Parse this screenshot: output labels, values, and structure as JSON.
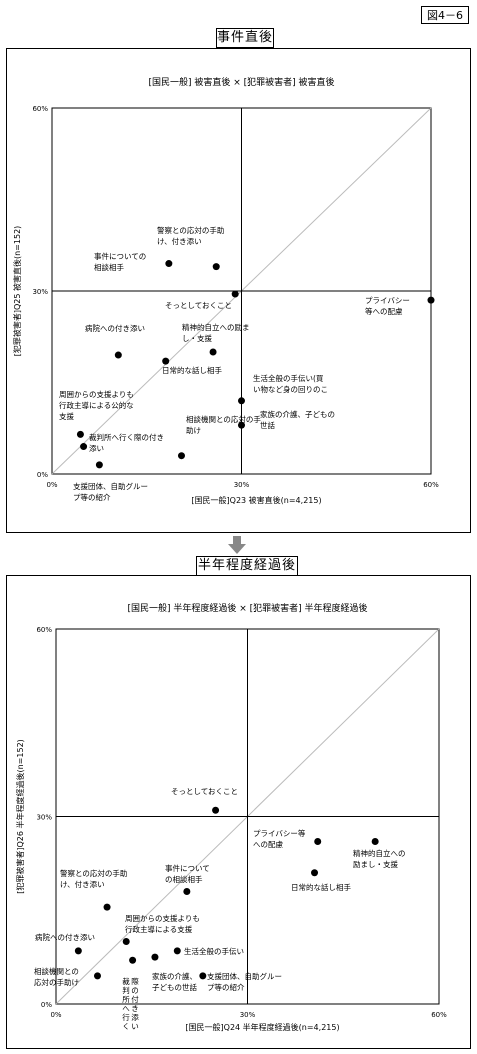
{
  "figure_label": "図4－6",
  "panels": [
    {
      "section_title": "事件直後",
      "chart_title": "[国民一般] 被害直後 × [犯罪被害者] 被害直後",
      "xlabel": "[国民一般]Q23 被害直後(n=4,215)",
      "ylabel": "[犯罪被害者]Q25 被害直後(n=152)",
      "x_ticks": [
        "0%",
        "30%",
        "60%"
      ],
      "y_ticks": [
        "0%",
        "30%",
        "60%"
      ]
    },
    {
      "section_title": "半年程度経過後",
      "chart_title": "[国民一般] 半年程度経過後 × [犯罪被害者] 半年程度経過後",
      "xlabel": "[国民一般]Q24 半年程度経過後(n=4,215)",
      "ylabel": "[犯罪被害者]Q26 半年程度経過後(n=152)",
      "x_ticks": [
        "0%",
        "30%",
        "60%"
      ],
      "y_ticks": [
        "0%",
        "30%",
        "60%"
      ]
    }
  ],
  "chart_data": [
    {
      "type": "scatter",
      "title": "[国民一般] 被害直後 × [犯罪被害者] 被害直後",
      "xlabel": "[国民一般]Q23 被害直後(n=4,215)",
      "ylabel": "[犯罪被害者]Q25 被害直後(n=152)",
      "xlim": [
        0,
        60
      ],
      "ylim": [
        0,
        60
      ],
      "unit": "%",
      "reference_lines": {
        "x": 30,
        "y": 30,
        "diagonal": true
      },
      "points": [
        {
          "label": "警察との応対の手助け、付き添い",
          "x": 26,
          "y": 34
        },
        {
          "label": "事件についての相談相手",
          "x": 18.5,
          "y": 34.5
        },
        {
          "label": "そっとしておくこと",
          "x": 29,
          "y": 29.5
        },
        {
          "label": "プライバシー等への配慮",
          "x": 60,
          "y": 28.5
        },
        {
          "label": "病院への付き添い",
          "x": 10.5,
          "y": 19.5
        },
        {
          "label": "精神的自立への励まし・支援",
          "x": 25.5,
          "y": 20
        },
        {
          "label": "日常的な話し相手",
          "x": 18,
          "y": 18.5
        },
        {
          "label": "生活全般の手伝い(買い物など身の回りのこと)",
          "x": 30,
          "y": 12
        },
        {
          "label": "周囲からの支援よりも行政主導による公的な支援",
          "x": 4.5,
          "y": 6.5
        },
        {
          "label": "家族の介護、子どもの世話",
          "x": 30,
          "y": 8
        },
        {
          "label": "裁判所へ行く際の付き添い",
          "x": 5,
          "y": 4.5
        },
        {
          "label": "相談機関との応対の手助け",
          "x": 20.5,
          "y": 3
        },
        {
          "label": "支援団体、自助グループ等の紹介",
          "x": 7.5,
          "y": 1.5
        }
      ]
    },
    {
      "type": "scatter",
      "title": "[国民一般] 半年程度経過後 × [犯罪被害者] 半年程度経過後",
      "xlabel": "[国民一般]Q24 半年程度経過後(n=4,215)",
      "ylabel": "[犯罪被害者]Q26 半年程度経過後(n=152)",
      "xlim": [
        0,
        60
      ],
      "ylim": [
        0,
        60
      ],
      "unit": "%",
      "reference_lines": {
        "x": 30,
        "y": 30,
        "diagonal": true
      },
      "points": [
        {
          "label": "そっとしておくこと",
          "x": 25,
          "y": 31
        },
        {
          "label": "プライバシー等への配慮",
          "x": 41,
          "y": 26
        },
        {
          "label": "精神的自立への励まし・支援",
          "x": 50,
          "y": 26
        },
        {
          "label": "日常的な話し相手",
          "x": 40.5,
          "y": 21
        },
        {
          "label": "事件についての相談相手",
          "x": 20.5,
          "y": 18
        },
        {
          "label": "警察との応対の手助け、付き添い",
          "x": 8,
          "y": 15.5
        },
        {
          "label": "周囲からの支援よりも行政主導による公的な支援",
          "x": 11,
          "y": 10
        },
        {
          "label": "病院への付き添い",
          "x": 3.5,
          "y": 8.5
        },
        {
          "label": "生活全般の手伝い",
          "x": 19,
          "y": 8.5
        },
        {
          "label": "家族の介護、子どもの世話",
          "x": 15.5,
          "y": 7.5
        },
        {
          "label": "裁判所へ行く際の付き添い",
          "x": 12,
          "y": 7
        },
        {
          "label": "相談機関との応対の手助け",
          "x": 6.5,
          "y": 4.5
        },
        {
          "label": "支援団体、自助グループ等の紹介",
          "x": 23,
          "y": 4.5
        }
      ]
    }
  ],
  "point_labels": [
    [
      {
        "lines": [
          "警察との応対の手助",
          "け、付き添い"
        ]
      },
      {
        "lines": [
          "事件についての",
          "相談相手"
        ]
      },
      {
        "lines": [
          "そっとしておくこと"
        ]
      },
      {
        "lines": [
          "プライバシー",
          "等への配慮"
        ]
      },
      {
        "lines": [
          "病院への付き添い"
        ]
      },
      {
        "lines": [
          "精神的自立への励ま",
          "し・支援"
        ]
      },
      {
        "lines": [
          "日常的な話し相手"
        ]
      },
      {
        "lines": [
          "生活全般の手伝い(買",
          "い物など身の回りのこ"
        ]
      },
      {
        "lines": [
          "周囲からの支援よりも",
          "行政主導による公的な",
          "支援"
        ]
      },
      {
        "lines": [
          "家族の介護、子どもの",
          "世話"
        ]
      },
      {
        "lines": [
          "裁判所へ行く際の付き",
          "添い"
        ]
      },
      {
        "lines": [
          "相談機関との応対の手",
          "助け"
        ]
      },
      {
        "lines": [
          "支援団体、自助グルー",
          "プ等の紹介"
        ]
      }
    ],
    [
      {
        "lines": [
          "そっとしておくこと"
        ]
      },
      {
        "lines": [
          "プライバシー等",
          "への配慮"
        ]
      },
      {
        "lines": [
          "精神的自立への",
          "励まし・支援"
        ]
      },
      {
        "lines": [
          "日常的な話し相手"
        ]
      },
      {
        "lines": [
          "事件について",
          "の相談相手"
        ]
      },
      {
        "lines": [
          "警察との応対の手助",
          "け、付き添い"
        ]
      },
      {
        "lines": [
          "周囲からの支援よりも",
          "行政主導による支援"
        ]
      },
      {
        "lines": [
          "病院への付き添い"
        ]
      },
      {
        "lines": [
          "生活全般の手伝い"
        ]
      },
      {
        "lines": [
          "家族の介護、",
          "子どもの世話"
        ]
      },
      {
        "lines": [
          "裁判所へ行く際の付き添い"
        ],
        "vertical": true
      },
      {
        "lines": [
          "相談機関との",
          "応対の手助け"
        ]
      },
      {
        "lines": [
          "支援団体、自助グルー",
          "プ等の紹介"
        ]
      }
    ]
  ]
}
